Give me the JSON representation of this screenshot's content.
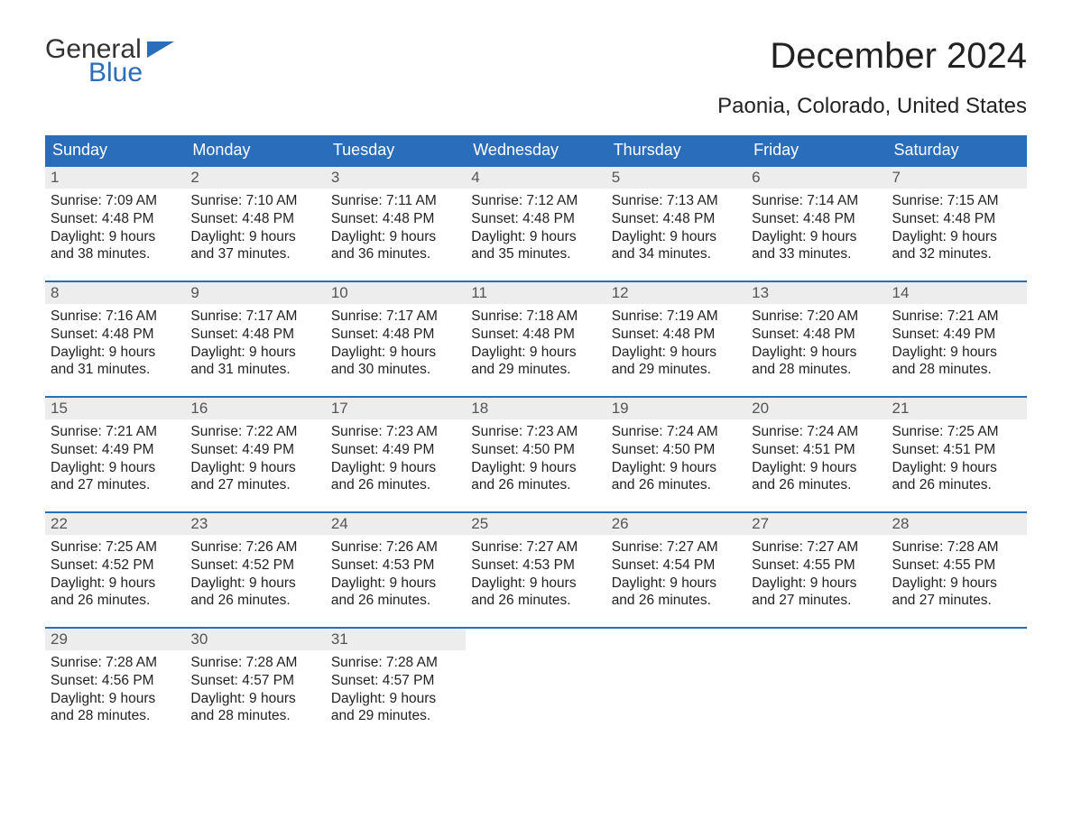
{
  "logo": {
    "text1": "General",
    "text2": "Blue"
  },
  "title": "December 2024",
  "location": "Paonia, Colorado, United States",
  "style": {
    "header_bg": "#2a6dbb",
    "header_text": "#ffffff",
    "daynum_bg": "#ededed",
    "border_color": "#2a6dbb",
    "body_text": "#222222",
    "page_bg": "#ffffff",
    "title_fontsize": 40,
    "subtitle_fontsize": 24,
    "header_fontsize": 18,
    "body_fontsize": 15.5
  },
  "daysOfWeek": [
    "Sunday",
    "Monday",
    "Tuesday",
    "Wednesday",
    "Thursday",
    "Friday",
    "Saturday"
  ],
  "weeks": [
    [
      {
        "n": "1",
        "sr": "7:09 AM",
        "ss": "4:48 PM",
        "dl": "9 hours and 38 minutes."
      },
      {
        "n": "2",
        "sr": "7:10 AM",
        "ss": "4:48 PM",
        "dl": "9 hours and 37 minutes."
      },
      {
        "n": "3",
        "sr": "7:11 AM",
        "ss": "4:48 PM",
        "dl": "9 hours and 36 minutes."
      },
      {
        "n": "4",
        "sr": "7:12 AM",
        "ss": "4:48 PM",
        "dl": "9 hours and 35 minutes."
      },
      {
        "n": "5",
        "sr": "7:13 AM",
        "ss": "4:48 PM",
        "dl": "9 hours and 34 minutes."
      },
      {
        "n": "6",
        "sr": "7:14 AM",
        "ss": "4:48 PM",
        "dl": "9 hours and 33 minutes."
      },
      {
        "n": "7",
        "sr": "7:15 AM",
        "ss": "4:48 PM",
        "dl": "9 hours and 32 minutes."
      }
    ],
    [
      {
        "n": "8",
        "sr": "7:16 AM",
        "ss": "4:48 PM",
        "dl": "9 hours and 31 minutes."
      },
      {
        "n": "9",
        "sr": "7:17 AM",
        "ss": "4:48 PM",
        "dl": "9 hours and 31 minutes."
      },
      {
        "n": "10",
        "sr": "7:17 AM",
        "ss": "4:48 PM",
        "dl": "9 hours and 30 minutes."
      },
      {
        "n": "11",
        "sr": "7:18 AM",
        "ss": "4:48 PM",
        "dl": "9 hours and 29 minutes."
      },
      {
        "n": "12",
        "sr": "7:19 AM",
        "ss": "4:48 PM",
        "dl": "9 hours and 29 minutes."
      },
      {
        "n": "13",
        "sr": "7:20 AM",
        "ss": "4:48 PM",
        "dl": "9 hours and 28 minutes."
      },
      {
        "n": "14",
        "sr": "7:21 AM",
        "ss": "4:49 PM",
        "dl": "9 hours and 28 minutes."
      }
    ],
    [
      {
        "n": "15",
        "sr": "7:21 AM",
        "ss": "4:49 PM",
        "dl": "9 hours and 27 minutes."
      },
      {
        "n": "16",
        "sr": "7:22 AM",
        "ss": "4:49 PM",
        "dl": "9 hours and 27 minutes."
      },
      {
        "n": "17",
        "sr": "7:23 AM",
        "ss": "4:49 PM",
        "dl": "9 hours and 26 minutes."
      },
      {
        "n": "18",
        "sr": "7:23 AM",
        "ss": "4:50 PM",
        "dl": "9 hours and 26 minutes."
      },
      {
        "n": "19",
        "sr": "7:24 AM",
        "ss": "4:50 PM",
        "dl": "9 hours and 26 minutes."
      },
      {
        "n": "20",
        "sr": "7:24 AM",
        "ss": "4:51 PM",
        "dl": "9 hours and 26 minutes."
      },
      {
        "n": "21",
        "sr": "7:25 AM",
        "ss": "4:51 PM",
        "dl": "9 hours and 26 minutes."
      }
    ],
    [
      {
        "n": "22",
        "sr": "7:25 AM",
        "ss": "4:52 PM",
        "dl": "9 hours and 26 minutes."
      },
      {
        "n": "23",
        "sr": "7:26 AM",
        "ss": "4:52 PM",
        "dl": "9 hours and 26 minutes."
      },
      {
        "n": "24",
        "sr": "7:26 AM",
        "ss": "4:53 PM",
        "dl": "9 hours and 26 minutes."
      },
      {
        "n": "25",
        "sr": "7:27 AM",
        "ss": "4:53 PM",
        "dl": "9 hours and 26 minutes."
      },
      {
        "n": "26",
        "sr": "7:27 AM",
        "ss": "4:54 PM",
        "dl": "9 hours and 26 minutes."
      },
      {
        "n": "27",
        "sr": "7:27 AM",
        "ss": "4:55 PM",
        "dl": "9 hours and 27 minutes."
      },
      {
        "n": "28",
        "sr": "7:28 AM",
        "ss": "4:55 PM",
        "dl": "9 hours and 27 minutes."
      }
    ],
    [
      {
        "n": "29",
        "sr": "7:28 AM",
        "ss": "4:56 PM",
        "dl": "9 hours and 28 minutes."
      },
      {
        "n": "30",
        "sr": "7:28 AM",
        "ss": "4:57 PM",
        "dl": "9 hours and 28 minutes."
      },
      {
        "n": "31",
        "sr": "7:28 AM",
        "ss": "4:57 PM",
        "dl": "9 hours and 29 minutes."
      },
      null,
      null,
      null,
      null
    ]
  ],
  "labels": {
    "sunrise": "Sunrise:",
    "sunset": "Sunset:",
    "daylight": "Daylight:"
  }
}
